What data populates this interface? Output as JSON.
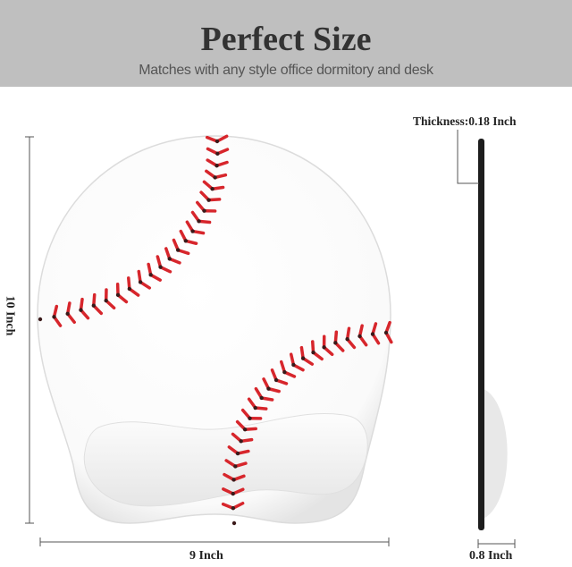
{
  "header": {
    "title": "Perfect Size",
    "subtitle": "Matches with any style office dormitory and desk"
  },
  "dimensions": {
    "height": "10 Inch",
    "width": "9 Inch",
    "thickness": "Thickness:0.18 Inch",
    "wrist_rest_depth": "0.8 Inch"
  },
  "colors": {
    "header_bg": "#bfbfbf",
    "stitch_red": "#d7262c",
    "stitch_dark": "#3a1a1a"
  }
}
